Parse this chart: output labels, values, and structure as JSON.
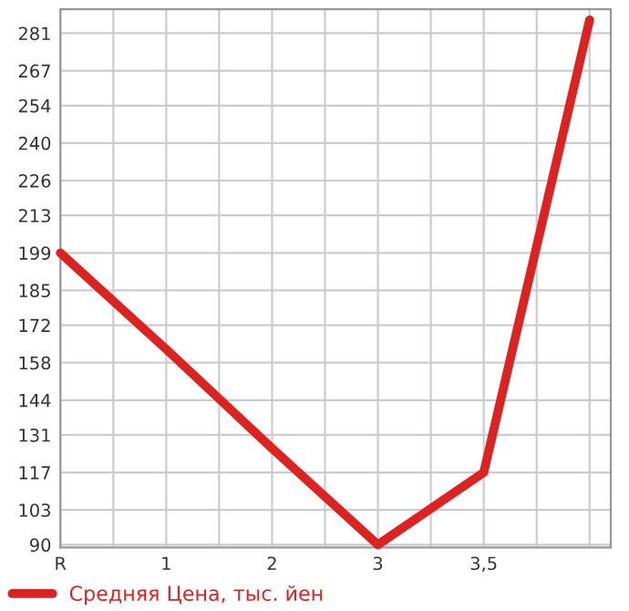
{
  "chart_data": {
    "type": "line",
    "categories": [
      "R",
      "1",
      "2",
      "3",
      "3,5",
      null
    ],
    "series": [
      {
        "name": "Средняя Цена, тыс. йен",
        "color": "#dd2222",
        "values": [
          199,
          163,
          126,
          90,
          117,
          286
        ]
      }
    ],
    "ylim": [
      89,
      290
    ],
    "yticks": [
      90,
      103,
      117,
      131,
      144,
      158,
      172,
      185,
      199,
      213,
      226,
      240,
      254,
      267,
      281
    ],
    "grid": true,
    "legend": "bottom left",
    "marker": "none",
    "line_style": "solid"
  }
}
